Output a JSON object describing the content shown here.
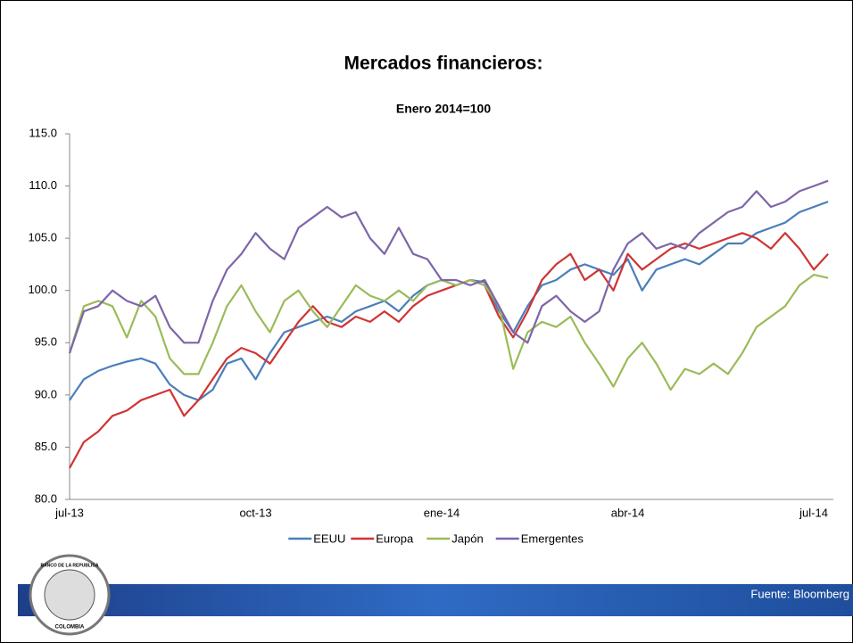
{
  "chart_data": {
    "type": "line",
    "title": "Mercados financieros:",
    "subtitle": "Enero 2014=100",
    "source": "Fuente: Bloomberg",
    "logo_text": [
      "BANCO DE LA REPUBLICA",
      "COLOMBIA"
    ],
    "categories": [
      "jul-13",
      null,
      null,
      null,
      null,
      null,
      null,
      null,
      null,
      null,
      null,
      null,
      null,
      "oct-13",
      null,
      null,
      null,
      null,
      null,
      null,
      null,
      null,
      null,
      null,
      null,
      null,
      "ene-14",
      null,
      null,
      null,
      null,
      null,
      null,
      null,
      null,
      null,
      null,
      null,
      null,
      "abr-14",
      null,
      null,
      null,
      null,
      null,
      null,
      null,
      null,
      null,
      null,
      null,
      null,
      "jul-14",
      null
    ],
    "series": [
      {
        "name": "EEUU",
        "color": "#4a7ebb",
        "values": [
          89.5,
          91.5,
          92.3,
          92.8,
          93.2,
          93.5,
          93.0,
          91.0,
          90.0,
          89.5,
          90.5,
          93.0,
          93.5,
          91.5,
          94.0,
          96.0,
          96.5,
          97.0,
          97.5,
          97.0,
          98.0,
          98.5,
          99.0,
          98.0,
          99.5,
          100.5,
          101.0,
          100.5,
          101.0,
          100.8,
          98.0,
          96.0,
          98.5,
          100.5,
          101.0,
          102.0,
          102.5,
          102.0,
          101.5,
          103.0,
          100.0,
          102.0,
          102.5,
          103.0,
          102.5,
          103.5,
          104.5,
          104.5,
          105.5,
          106.0,
          106.5,
          107.5,
          108.0,
          108.5
        ]
      },
      {
        "name": "Europa",
        "color": "#cf3434",
        "values": [
          83,
          85.5,
          86.5,
          88,
          88.5,
          89.5,
          90,
          90.5,
          88,
          89.5,
          91.5,
          93.5,
          94.5,
          94,
          93,
          95,
          97,
          98.5,
          97,
          96.5,
          97.5,
          97,
          98,
          97,
          98.5,
          99.5,
          100,
          100.5,
          101,
          100.5,
          97.5,
          95.5,
          98,
          101,
          102.5,
          103.5,
          101,
          102,
          100,
          103.5,
          102,
          103,
          104,
          104.5,
          104,
          104.5,
          105,
          105.5,
          105,
          104,
          105.5,
          104,
          102,
          103.5
        ]
      },
      {
        "name": "Japón",
        "color": "#9bbb59",
        "values": [
          94,
          98.5,
          99,
          98.5,
          95.5,
          99,
          97.5,
          93.5,
          92,
          92,
          95,
          98.5,
          100.5,
          98,
          96,
          99,
          100,
          98,
          96.5,
          98.5,
          100.5,
          99.5,
          99,
          100,
          99,
          100.5,
          101,
          100.5,
          101,
          100.5,
          98.5,
          92.5,
          96,
          97,
          96.5,
          97.5,
          95,
          93,
          90.8,
          93.5,
          95,
          93,
          90.5,
          92.5,
          92,
          93,
          92,
          94,
          96.5,
          97.5,
          98.5,
          100.5,
          101.5,
          101.2
        ]
      },
      {
        "name": "Emergentes",
        "color": "#7e65a8",
        "values": [
          94,
          98,
          98.5,
          100,
          99,
          98.5,
          99.5,
          96.5,
          95,
          95,
          99,
          102,
          103.5,
          105.5,
          104,
          103,
          106,
          107,
          108,
          107,
          107.5,
          105,
          103.5,
          106,
          103.5,
          103,
          101,
          101,
          100.5,
          101,
          98.5,
          96,
          95,
          98.5,
          99.5,
          98,
          97,
          98,
          102,
          104.5,
          105.5,
          104,
          104.5,
          104,
          105.5,
          106.5,
          107.5,
          108,
          109.5,
          108,
          108.5,
          109.5,
          110,
          110.5
        ]
      }
    ],
    "ylim": [
      80,
      115
    ],
    "yticks": [
      {
        "value": 80,
        "label": "80.0"
      },
      {
        "value": 85,
        "label": "85.0"
      },
      {
        "value": 90,
        "label": "90.0"
      },
      {
        "value": 95,
        "label": "95.0"
      },
      {
        "value": 100,
        "label": "100.0"
      },
      {
        "value": 105,
        "label": "105.0"
      },
      {
        "value": 110,
        "label": "110.0"
      },
      {
        "value": 115,
        "label": "115.0"
      }
    ],
    "legend": "bottom"
  }
}
